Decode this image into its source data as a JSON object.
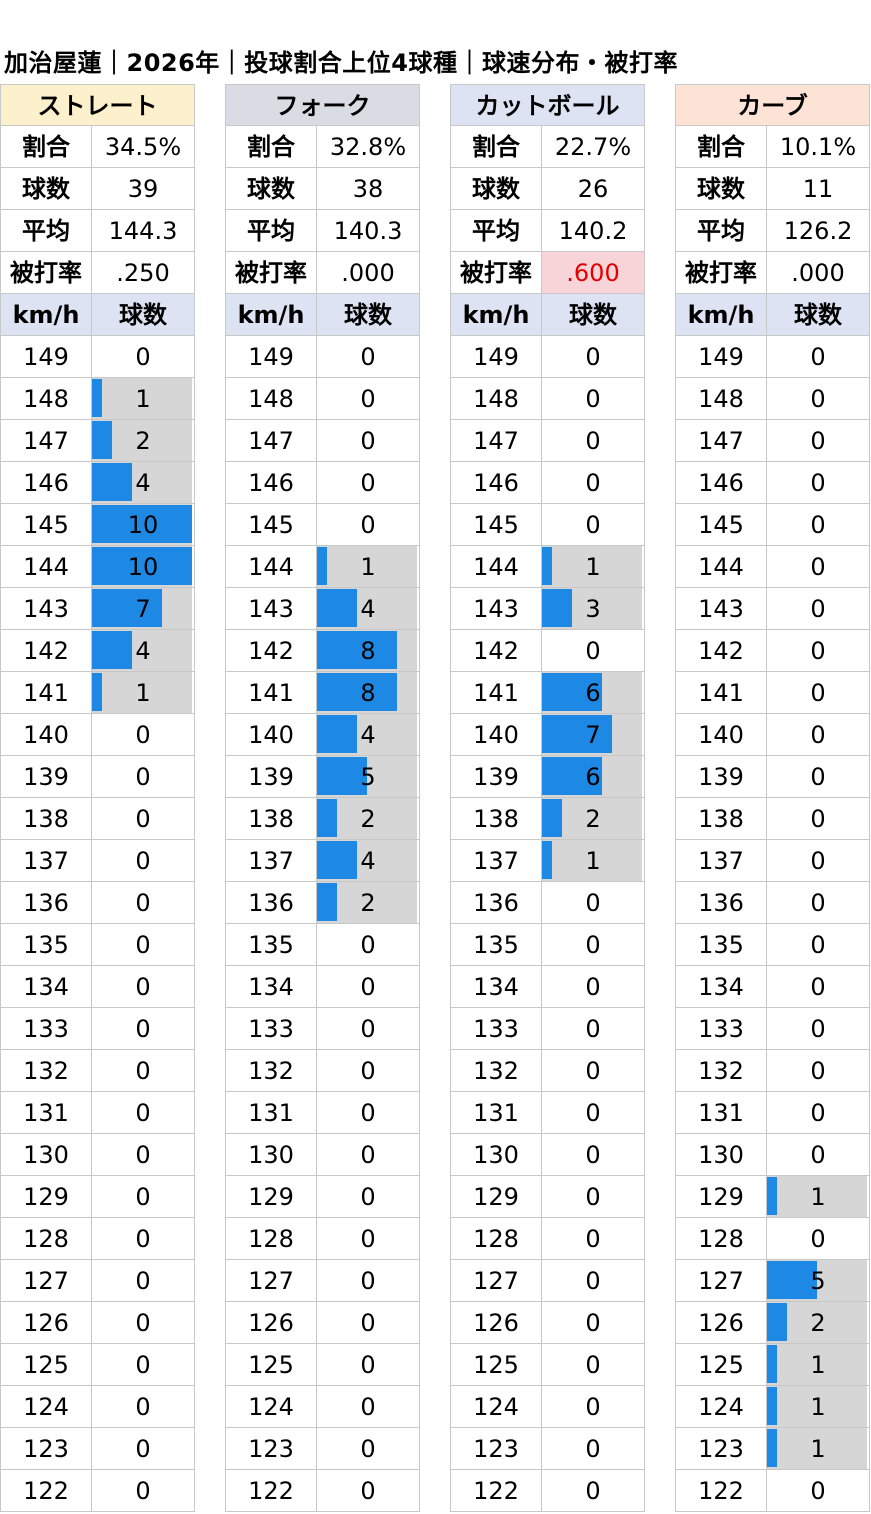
{
  "title": "加治屋蓮｜2026年｜投球割合上位4球種｜球速分布・被打率",
  "labels": {
    "ratio": "割合",
    "count": "球数",
    "avg": "平均",
    "baa": "被打率",
    "kmh": "km/h",
    "pitches": "球数"
  },
  "speeds": [
    149,
    148,
    147,
    146,
    145,
    144,
    143,
    142,
    141,
    140,
    139,
    138,
    137,
    136,
    135,
    134,
    133,
    132,
    131,
    130,
    129,
    128,
    127,
    126,
    125,
    124,
    123,
    122
  ],
  "colors": {
    "bar": "#1e88e5",
    "bar_bg": "#d6d6d6",
    "highlight_bg": "#f8d3d8",
    "highlight_text": "#e00000"
  },
  "pitches": [
    {
      "name": "ストレート",
      "header_color": "#fdf0cc",
      "ratio": "34.5%",
      "count": "39",
      "avg": "144.3",
      "baa": ".250",
      "baa_highlight": false,
      "dist": [
        0,
        1,
        2,
        4,
        10,
        10,
        7,
        4,
        1,
        0,
        0,
        0,
        0,
        0,
        0,
        0,
        0,
        0,
        0,
        0,
        0,
        0,
        0,
        0,
        0,
        0,
        0,
        0
      ]
    },
    {
      "name": "フォーク",
      "header_color": "#d9dde3",
      "ratio": "32.8%",
      "count": "38",
      "avg": "140.3",
      "baa": ".000",
      "baa_highlight": false,
      "dist": [
        0,
        0,
        0,
        0,
        0,
        1,
        4,
        8,
        8,
        4,
        5,
        2,
        4,
        2,
        0,
        0,
        0,
        0,
        0,
        0,
        0,
        0,
        0,
        0,
        0,
        0,
        0,
        0
      ]
    },
    {
      "name": "カットボール",
      "header_color": "#dde3f3",
      "ratio": "22.7%",
      "count": "26",
      "avg": "140.2",
      "baa": ".600",
      "baa_highlight": true,
      "dist": [
        0,
        0,
        0,
        0,
        0,
        1,
        3,
        0,
        6,
        7,
        6,
        2,
        1,
        0,
        0,
        0,
        0,
        0,
        0,
        0,
        0,
        0,
        0,
        0,
        0,
        0,
        0,
        0
      ]
    },
    {
      "name": "カーブ",
      "header_color": "#fde3d6",
      "ratio": "10.1%",
      "count": "11",
      "avg": "126.2",
      "baa": ".000",
      "baa_highlight": false,
      "dist": [
        0,
        0,
        0,
        0,
        0,
        0,
        0,
        0,
        0,
        0,
        0,
        0,
        0,
        0,
        0,
        0,
        0,
        0,
        0,
        0,
        1,
        0,
        5,
        2,
        1,
        1,
        1,
        0
      ]
    }
  ],
  "chart_data": {
    "type": "table",
    "title": "加治屋蓮｜2026年｜投球割合上位4球種｜球速分布・被打率",
    "categories": [
      149,
      148,
      147,
      146,
      145,
      144,
      143,
      142,
      141,
      140,
      139,
      138,
      137,
      136,
      135,
      134,
      133,
      132,
      131,
      130,
      129,
      128,
      127,
      126,
      125,
      124,
      123,
      122
    ],
    "series": [
      {
        "name": "ストレート",
        "values": [
          0,
          1,
          2,
          4,
          10,
          10,
          7,
          4,
          1,
          0,
          0,
          0,
          0,
          0,
          0,
          0,
          0,
          0,
          0,
          0,
          0,
          0,
          0,
          0,
          0,
          0,
          0,
          0
        ]
      },
      {
        "name": "フォーク",
        "values": [
          0,
          0,
          0,
          0,
          0,
          1,
          4,
          8,
          8,
          4,
          5,
          2,
          4,
          2,
          0,
          0,
          0,
          0,
          0,
          0,
          0,
          0,
          0,
          0,
          0,
          0,
          0,
          0
        ]
      },
      {
        "name": "カットボール",
        "values": [
          0,
          0,
          0,
          0,
          0,
          1,
          3,
          0,
          6,
          7,
          6,
          2,
          1,
          0,
          0,
          0,
          0,
          0,
          0,
          0,
          0,
          0,
          0,
          0,
          0,
          0,
          0,
          0
        ]
      },
      {
        "name": "カーブ",
        "values": [
          0,
          0,
          0,
          0,
          0,
          0,
          0,
          0,
          0,
          0,
          0,
          0,
          0,
          0,
          0,
          0,
          0,
          0,
          0,
          0,
          1,
          0,
          5,
          2,
          1,
          1,
          1,
          0
        ]
      }
    ],
    "xlabel": "km/h",
    "ylabel": "球数"
  }
}
